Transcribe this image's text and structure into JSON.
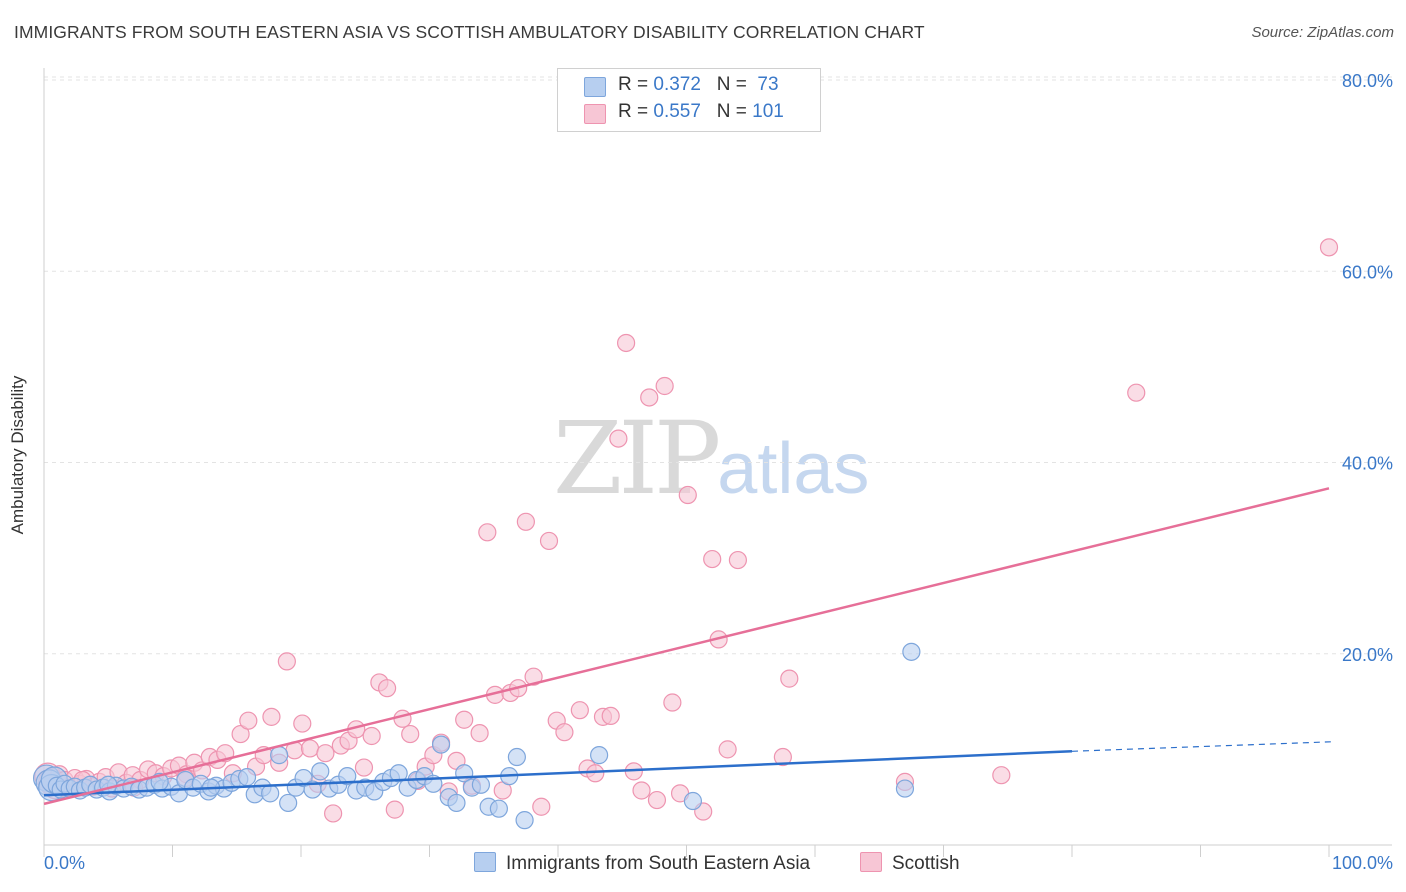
{
  "title": "IMMIGRANTS FROM SOUTH EASTERN ASIA VS SCOTTISH AMBULATORY DISABILITY CORRELATION CHART",
  "source": "Source: ZipAtlas.com",
  "watermark": {
    "zip": "ZIP",
    "atlas": "atlas"
  },
  "legend": {
    "rows": [
      {
        "r_label": "R = ",
        "r_value": "0.372",
        "n_label": "N = ",
        "n_value": " 73"
      },
      {
        "r_label": "R = ",
        "r_value": "0.557",
        "n_label": "N = ",
        "n_value": "101"
      }
    ]
  },
  "colors": {
    "blue_fill": "#b7cff0",
    "blue_stroke": "#7ea6dc",
    "blue_line": "#2c6fcb",
    "pink_fill": "#f7c6d5",
    "pink_stroke": "#ee94b0",
    "pink_line": "#e66f98",
    "tick_label": "#3a78c8",
    "grid": "#e3e3e3"
  },
  "chart_data": {
    "type": "scatter",
    "title": "IMMIGRANTS FROM SOUTH EASTERN ASIA VS SCOTTISH AMBULATORY DISABILITY CORRELATION CHART",
    "xlabel": "",
    "ylabel": "Ambulatory Disability",
    "xlim": [
      0,
      100
    ],
    "ylim": [
      0,
      80
    ],
    "x_tick_labels": [
      "0.0%",
      "100.0%"
    ],
    "y_tick_values": [
      20,
      40,
      60,
      80
    ],
    "y_tick_labels": [
      "20.0%",
      "40.0%",
      "60.0%",
      "80.0%"
    ],
    "grid": true,
    "legend_position": "bottom",
    "series": [
      {
        "name": "Immigrants from South Eastern Asia",
        "color": "#7ea6dc",
        "r": 0.372,
        "n": 73,
        "trend": {
          "x": [
            0,
            80
          ],
          "y": [
            5.2,
            9.8
          ],
          "dashed_to": [
            100,
            10.8
          ]
        },
        "points": [
          [
            0.2,
            7.0
          ],
          [
            0.4,
            6.5
          ],
          [
            0.6,
            6.0
          ],
          [
            0.8,
            6.8
          ],
          [
            1.0,
            6.2
          ],
          [
            1.3,
            5.8
          ],
          [
            1.6,
            6.4
          ],
          [
            2.0,
            5.9
          ],
          [
            2.4,
            6.1
          ],
          [
            2.8,
            5.7
          ],
          [
            3.2,
            6.0
          ],
          [
            3.6,
            6.3
          ],
          [
            4.1,
            5.8
          ],
          [
            4.6,
            6.0
          ],
          [
            5.1,
            5.6
          ],
          [
            5.6,
            6.2
          ],
          [
            6.2,
            5.9
          ],
          [
            6.8,
            6.1
          ],
          [
            7.4,
            5.8
          ],
          [
            8.0,
            6.0
          ],
          [
            8.6,
            6.3
          ],
          [
            9.2,
            5.9
          ],
          [
            9.9,
            6.1
          ],
          [
            10.5,
            5.4
          ],
          [
            11.0,
            6.8
          ],
          [
            11.6,
            6.0
          ],
          [
            12.2,
            6.4
          ],
          [
            12.8,
            5.6
          ],
          [
            13.4,
            6.2
          ],
          [
            14.0,
            5.9
          ],
          [
            14.6,
            6.5
          ],
          [
            15.2,
            6.9
          ],
          [
            15.8,
            7.1
          ],
          [
            16.4,
            5.3
          ],
          [
            17.0,
            6.0
          ],
          [
            17.6,
            5.4
          ],
          [
            18.3,
            9.4
          ],
          [
            19.0,
            4.4
          ],
          [
            19.6,
            6.0
          ],
          [
            20.2,
            7.0
          ],
          [
            20.9,
            5.8
          ],
          [
            21.5,
            7.7
          ],
          [
            22.2,
            5.9
          ],
          [
            22.9,
            6.3
          ],
          [
            23.6,
            7.2
          ],
          [
            24.3,
            5.7
          ],
          [
            25.0,
            6.0
          ],
          [
            25.7,
            5.6
          ],
          [
            26.4,
            6.6
          ],
          [
            27.0,
            7.0
          ],
          [
            27.6,
            7.5
          ],
          [
            28.3,
            6.0
          ],
          [
            29.0,
            6.8
          ],
          [
            29.6,
            7.2
          ],
          [
            30.3,
            6.4
          ],
          [
            30.9,
            10.5
          ],
          [
            31.5,
            5.0
          ],
          [
            32.1,
            4.4
          ],
          [
            32.7,
            7.5
          ],
          [
            33.3,
            6.0
          ],
          [
            34.0,
            6.3
          ],
          [
            34.6,
            4.0
          ],
          [
            35.4,
            3.8
          ],
          [
            36.2,
            7.2
          ],
          [
            36.8,
            9.2
          ],
          [
            37.4,
            2.6
          ],
          [
            43.2,
            9.4
          ],
          [
            50.5,
            4.6
          ],
          [
            67.0,
            5.9
          ],
          [
            67.5,
            20.2
          ],
          [
            5.0,
            6.3
          ],
          [
            9.0,
            6.6
          ],
          [
            13.0,
            6.0
          ]
        ]
      },
      {
        "name": "Scottish",
        "color": "#ee94b0",
        "r": 0.557,
        "n": 101,
        "trend": {
          "x": [
            0,
            100
          ],
          "y": [
            4.3,
            37.3
          ]
        },
        "points": [
          [
            0.3,
            7.2
          ],
          [
            0.6,
            6.6
          ],
          [
            0.9,
            6.2
          ],
          [
            1.2,
            7.4
          ],
          [
            1.6,
            6.8
          ],
          [
            2.0,
            6.0
          ],
          [
            2.4,
            7.0
          ],
          [
            2.8,
            6.4
          ],
          [
            3.3,
            6.9
          ],
          [
            3.8,
            6.1
          ],
          [
            4.3,
            6.6
          ],
          [
            4.8,
            7.1
          ],
          [
            5.3,
            5.9
          ],
          [
            5.8,
            7.6
          ],
          [
            6.4,
            6.5
          ],
          [
            6.9,
            7.3
          ],
          [
            7.5,
            6.8
          ],
          [
            8.1,
            7.9
          ],
          [
            8.7,
            7.5
          ],
          [
            9.3,
            7.2
          ],
          [
            9.9,
            8.0
          ],
          [
            10.5,
            8.3
          ],
          [
            11.1,
            7.4
          ],
          [
            11.7,
            8.6
          ],
          [
            12.3,
            7.8
          ],
          [
            12.9,
            9.2
          ],
          [
            13.5,
            8.9
          ],
          [
            14.1,
            9.6
          ],
          [
            14.7,
            7.5
          ],
          [
            15.3,
            11.6
          ],
          [
            15.9,
            13.0
          ],
          [
            16.5,
            8.2
          ],
          [
            17.1,
            9.4
          ],
          [
            17.7,
            13.4
          ],
          [
            18.3,
            8.6
          ],
          [
            18.9,
            19.2
          ],
          [
            19.5,
            9.9
          ],
          [
            20.1,
            12.7
          ],
          [
            20.7,
            10.1
          ],
          [
            21.3,
            6.4
          ],
          [
            21.9,
            9.6
          ],
          [
            22.5,
            3.3
          ],
          [
            23.1,
            10.4
          ],
          [
            23.7,
            10.9
          ],
          [
            24.3,
            12.1
          ],
          [
            24.9,
            8.1
          ],
          [
            25.5,
            11.4
          ],
          [
            26.1,
            17.0
          ],
          [
            26.7,
            16.4
          ],
          [
            27.3,
            3.7
          ],
          [
            27.9,
            13.2
          ],
          [
            28.5,
            11.6
          ],
          [
            29.1,
            6.7
          ],
          [
            29.7,
            8.2
          ],
          [
            30.3,
            9.4
          ],
          [
            30.9,
            10.7
          ],
          [
            31.5,
            5.6
          ],
          [
            32.1,
            8.8
          ],
          [
            32.7,
            13.1
          ],
          [
            33.3,
            6.2
          ],
          [
            33.9,
            11.7
          ],
          [
            34.5,
            32.7
          ],
          [
            35.1,
            15.7
          ],
          [
            35.7,
            5.7
          ],
          [
            36.3,
            15.9
          ],
          [
            36.9,
            16.4
          ],
          [
            37.5,
            33.8
          ],
          [
            38.1,
            17.6
          ],
          [
            38.7,
            4.0
          ],
          [
            39.3,
            31.8
          ],
          [
            39.9,
            13.0
          ],
          [
            40.5,
            11.8
          ],
          [
            41.7,
            14.1
          ],
          [
            42.3,
            8.0
          ],
          [
            42.9,
            7.5
          ],
          [
            43.5,
            13.4
          ],
          [
            44.1,
            13.5
          ],
          [
            44.7,
            42.5
          ],
          [
            45.3,
            52.5
          ],
          [
            45.9,
            7.7
          ],
          [
            46.5,
            5.7
          ],
          [
            47.1,
            46.8
          ],
          [
            47.7,
            4.7
          ],
          [
            48.3,
            48.0
          ],
          [
            48.9,
            14.9
          ],
          [
            49.5,
            5.4
          ],
          [
            50.1,
            36.6
          ],
          [
            51.3,
            3.5
          ],
          [
            52.0,
            29.9
          ],
          [
            52.5,
            21.5
          ],
          [
            53.2,
            10.0
          ],
          [
            54.0,
            29.8
          ],
          [
            57.5,
            9.2
          ],
          [
            58.0,
            17.4
          ],
          [
            67.0,
            6.6
          ],
          [
            74.5,
            7.3
          ],
          [
            85.0,
            47.3
          ],
          [
            100.0,
            62.5
          ],
          [
            7.0,
            6.0
          ],
          [
            11.0,
            7.0
          ],
          [
            3.0,
            6.8
          ]
        ]
      }
    ]
  },
  "bottom_legend": {
    "item1": "Immigrants from South Eastern Asia",
    "item2": "Scottish"
  }
}
